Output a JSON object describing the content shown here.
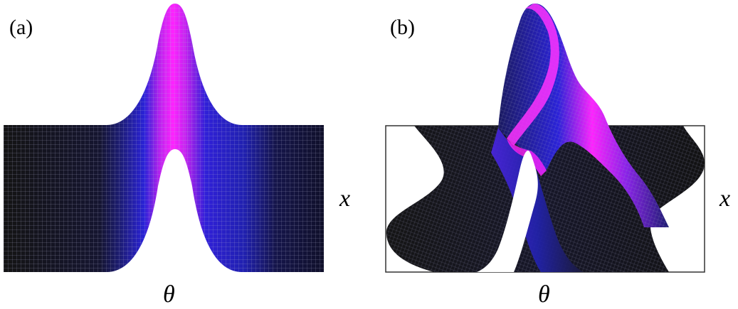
{
  "figure": {
    "panels": [
      {
        "id": "a",
        "label": "(a)",
        "x_axis_label": "θ",
        "y_axis_label": "x"
      },
      {
        "id": "b",
        "label": "(b)",
        "x_axis_label": "θ",
        "y_axis_label": "x"
      }
    ],
    "colors": {
      "surface_dark": "#1a1a1a",
      "surface_mid": "#2020d0",
      "surface_peak": "#ff22ff",
      "mesh_line": "#8f8fb0",
      "frame": "#333333"
    }
  }
}
